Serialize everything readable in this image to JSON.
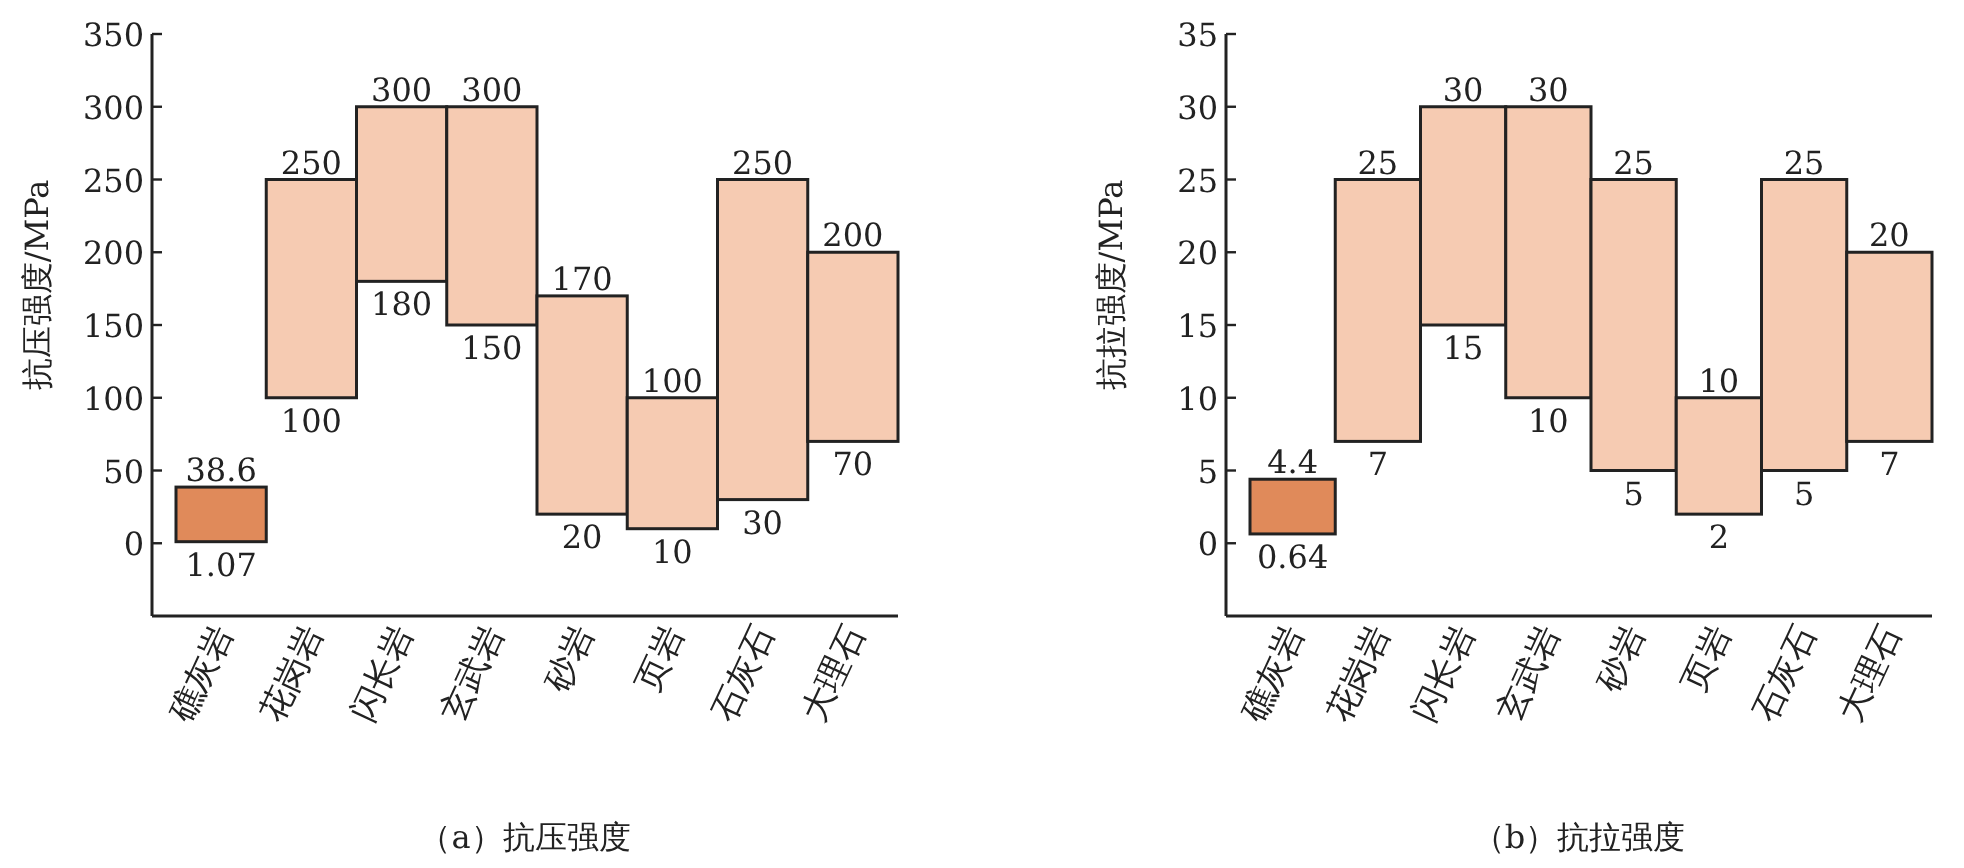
{
  "chart_data": [
    {
      "type": "bar",
      "title": "（a）抗压强度",
      "ylabel": "抗压强度/MPa",
      "categories": [
        "礁灰岩",
        "花岗岩",
        "闪长岩",
        "玄武岩",
        "砂岩",
        "页岩",
        "石灰石",
        "大理石"
      ],
      "base": [
        1.07,
        100,
        180,
        150,
        20,
        10,
        30,
        70
      ],
      "values": [
        37.53,
        150,
        120,
        150,
        150,
        90,
        220,
        130
      ],
      "colors": [
        "#e08a5a",
        "#f6cbb2",
        "#f6cbb2",
        "#f6cbb2",
        "#f6cbb2",
        "#f6cbb2",
        "#f6cbb2",
        "#f6cbb2"
      ],
      "ylim": [
        -50,
        350
      ],
      "yticks": [
        0,
        50,
        100,
        150,
        200,
        250,
        300,
        350
      ],
      "annotations": [
        {
          "text": "38.6",
          "x": "礁灰岩",
          "y": 38.6
        },
        {
          "text": "1.07",
          "x": "礁灰岩",
          "y": 1.07
        },
        {
          "text": "250",
          "x": "花岗岩",
          "y": 250
        },
        {
          "text": "100",
          "x": "花岗岩",
          "y": 100
        },
        {
          "text": "300",
          "x": "闪长岩",
          "y": 300
        },
        {
          "text": "180",
          "x": "闪长岩",
          "y": 180
        },
        {
          "text": "300",
          "x": "玄武岩",
          "y": 300
        },
        {
          "text": "150",
          "x": "玄武岩",
          "y": 150
        },
        {
          "text": "170",
          "x": "砂岩",
          "y": 170
        },
        {
          "text": "20",
          "x": "砂岩",
          "y": 20
        },
        {
          "text": "100",
          "x": "页岩",
          "y": 100
        },
        {
          "text": "10",
          "x": "页岩",
          "y": 10
        },
        {
          "text": "250",
          "x": "石灰石",
          "y": 250
        },
        {
          "text": "30",
          "x": "石灰石",
          "y": 30
        },
        {
          "text": "200",
          "x": "大理石",
          "y": 200
        },
        {
          "text": "70",
          "x": "大理石",
          "y": 70
        }
      ]
    },
    {
      "type": "bar",
      "title": "（b）抗拉强度",
      "ylabel": "抗拉强度/MPa",
      "categories": [
        "礁灰岩",
        "花岗岩",
        "闪长岩",
        "玄武岩",
        "砂岩",
        "页岩",
        "石灰石",
        "大理石"
      ],
      "base": [
        0.64,
        7,
        15,
        10,
        5,
        2,
        5,
        7
      ],
      "values": [
        3.76,
        18,
        15,
        20,
        20,
        8,
        20,
        13
      ],
      "colors": [
        "#e08a5a",
        "#f6cbb2",
        "#f6cbb2",
        "#f6cbb2",
        "#f6cbb2",
        "#f6cbb2",
        "#f6cbb2",
        "#f6cbb2"
      ],
      "ylim": [
        -5,
        35
      ],
      "yticks": [
        0,
        5,
        10,
        15,
        20,
        25,
        30,
        35
      ],
      "annotations": [
        {
          "text": "4.4",
          "x": "礁灰岩",
          "y": 4.4
        },
        {
          "text": "0.64",
          "x": "礁灰岩",
          "y": 0.64
        },
        {
          "text": "25",
          "x": "花岗岩",
          "y": 25
        },
        {
          "text": "7",
          "x": "花岗岩",
          "y": 7
        },
        {
          "text": "30",
          "x": "闪长岩",
          "y": 30
        },
        {
          "text": "15",
          "x": "闪长岩",
          "y": 15
        },
        {
          "text": "30",
          "x": "玄武岩",
          "y": 30
        },
        {
          "text": "10",
          "x": "玄武岩",
          "y": 10
        },
        {
          "text": "25",
          "x": "砂岩",
          "y": 25
        },
        {
          "text": "5",
          "x": "砂岩",
          "y": 5
        },
        {
          "text": "10",
          "x": "页岩",
          "y": 10
        },
        {
          "text": "2",
          "x": "页岩",
          "y": 2
        },
        {
          "text": "25",
          "x": "石灰石",
          "y": 25
        },
        {
          "text": "5",
          "x": "石灰石",
          "y": 5
        },
        {
          "text": "20",
          "x": "大理石",
          "y": 20
        },
        {
          "text": "7",
          "x": "大理石",
          "y": 7
        }
      ]
    }
  ]
}
